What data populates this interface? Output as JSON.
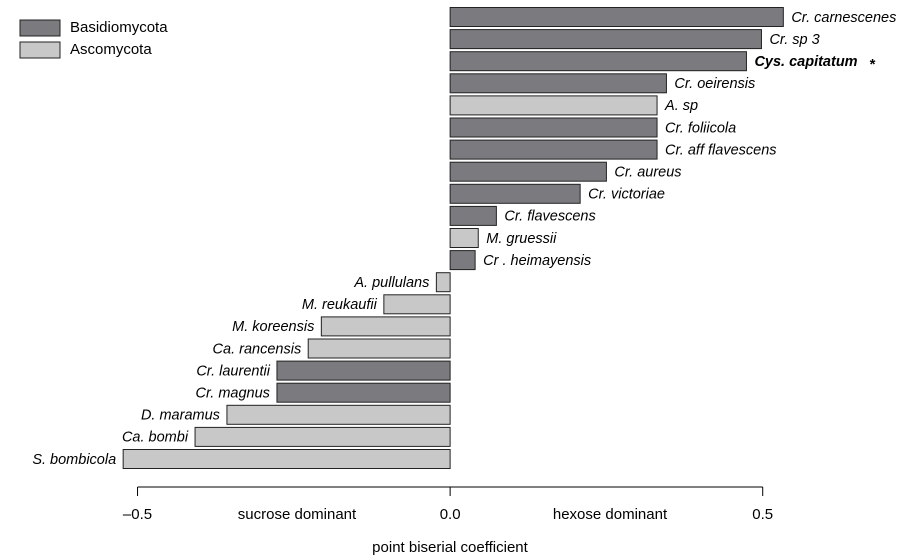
{
  "chart_data": {
    "type": "barh",
    "categories": [
      "Cr. carnescenes",
      "Cr. sp 3",
      "Cys. capitatum",
      "Cr. oeirensis",
      "A. sp",
      "Cr. foliicola",
      "Cr. aff flavescens",
      "Cr. aureus",
      "Cr. victoriae",
      "Cr. flavescens",
      "M. gruessii",
      "Cr . heimayensis",
      "A. pullulans",
      "M. reukaufii",
      "M. koreensis",
      "Ca. rancensis",
      "Cr. laurentii",
      "Cr. magnus",
      "D. maramus",
      "Ca. bombi",
      "S. bombicola"
    ],
    "series": [
      {
        "name": "Basidiomycota",
        "color": "#7a7a7f",
        "values": [
          0.533,
          0.498,
          0.474,
          0.346,
          null,
          0.331,
          0.331,
          0.25,
          0.208,
          0.074,
          null,
          0.04,
          null,
          null,
          null,
          null,
          -0.277,
          -0.277,
          null,
          null,
          null
        ]
      },
      {
        "name": "Ascomycota",
        "color": "#c8c8c8",
        "values": [
          null,
          null,
          null,
          null,
          0.331,
          null,
          null,
          null,
          null,
          null,
          0.045,
          null,
          -0.022,
          -0.106,
          -0.206,
          -0.227,
          null,
          null,
          -0.357,
          -0.408,
          -0.523
        ]
      }
    ],
    "annotations": [
      {
        "category": "Cys. capitatum",
        "text": "*"
      }
    ],
    "xlim": [
      -0.72,
      0.75
    ],
    "xticks": [
      {
        "value": -0.5,
        "label": "–0.5"
      },
      {
        "value": 0,
        "label": "0.0"
      },
      0.5
    ],
    "region_labels": [
      "sucrose dominant",
      "hexose dominant"
    ],
    "xlabel": "point biserial coefficient",
    "legend": "top-left"
  }
}
